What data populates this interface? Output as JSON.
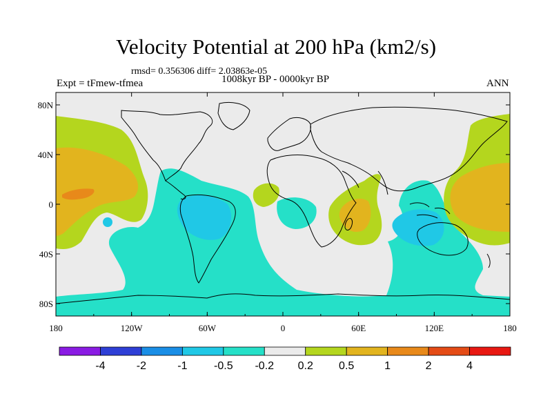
{
  "title": "Velocity Potential at 200 hPa (km2/s)",
  "stats": "rmsd= 0.356306 diff= 2.03863e-05",
  "period": "1008kyr BP - 0000kyr BP",
  "experiment": "Expt = tFmew-tfmea",
  "season": "ANN",
  "axes": {
    "lon_ticks": [
      "180",
      "120W",
      "60W",
      "0",
      "60E",
      "120E",
      "180"
    ],
    "lat_ticks": [
      "80N",
      "40N",
      "0",
      "40S",
      "80S"
    ]
  },
  "colorbar": {
    "colors": [
      "#8a1be3",
      "#2e3fd6",
      "#1a8ee6",
      "#20c8e6",
      "#25e0c8",
      "#ebebeb",
      "#b4d61e",
      "#e2b41e",
      "#e8891a",
      "#e44b16",
      "#e81812"
    ],
    "labels": [
      "-4",
      "-2",
      "-1",
      "-0.5",
      "-0.2",
      "0.2",
      "0.5",
      "1",
      "2",
      "4"
    ]
  }
}
